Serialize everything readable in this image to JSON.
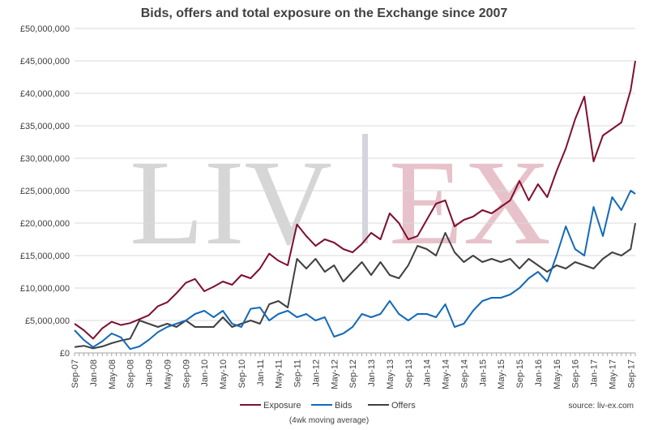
{
  "chart_data": {
    "type": "line",
    "title": "Bids, offers and total exposure on the Exchange since 2007",
    "subtitle": "(4wk moving average)",
    "source": "source: liv-ex.com",
    "watermark": {
      "left": "LIV",
      "right": "EX"
    },
    "xlabel": "",
    "ylabel": "",
    "ylim": [
      0,
      50000000
    ],
    "y_ticks": [
      0,
      5000000,
      10000000,
      15000000,
      20000000,
      25000000,
      30000000,
      35000000,
      40000000,
      45000000,
      50000000
    ],
    "y_tick_labels": [
      "£0",
      "£5,000,000",
      "£10,000,000",
      "£15,000,000",
      "£20,000,000",
      "£25,000,000",
      "£30,000,000",
      "£35,000,000",
      "£40,000,000",
      "£45,000,000",
      "£50,000,000"
    ],
    "grid": true,
    "legend_position": "bottom",
    "x_tick_labels": [
      "Sep-07",
      "Jan-08",
      "May-08",
      "Sep-08",
      "Jan-09",
      "May-09",
      "Sep-09",
      "Jan-10",
      "May-10",
      "Sep-10",
      "Jan-11",
      "May-11",
      "Sep-11",
      "Jan-12",
      "May-12",
      "Sep-12",
      "Jan-13",
      "May-13",
      "Sep-13",
      "Jan-14",
      "May-14",
      "Sep-14",
      "Jan-15",
      "May-15",
      "Sep-15",
      "Jan-16",
      "May-16",
      "Sep-16",
      "Jan-17",
      "May-17",
      "Sep-17"
    ],
    "x": [
      "Sep-07",
      "Nov-07",
      "Jan-08",
      "Mar-08",
      "May-08",
      "Jul-08",
      "Sep-08",
      "Nov-08",
      "Jan-09",
      "Mar-09",
      "May-09",
      "Jul-09",
      "Sep-09",
      "Nov-09",
      "Jan-10",
      "Mar-10",
      "May-10",
      "Jul-10",
      "Sep-10",
      "Nov-10",
      "Jan-11",
      "Mar-11",
      "May-11",
      "Jul-11",
      "Sep-11",
      "Nov-11",
      "Jan-12",
      "Mar-12",
      "May-12",
      "Jul-12",
      "Sep-12",
      "Nov-12",
      "Jan-13",
      "Mar-13",
      "May-13",
      "Jul-13",
      "Sep-13",
      "Nov-13",
      "Jan-14",
      "Mar-14",
      "May-14",
      "Jul-14",
      "Sep-14",
      "Nov-14",
      "Jan-15",
      "Mar-15",
      "May-15",
      "Jul-15",
      "Sep-15",
      "Nov-15",
      "Jan-16",
      "Mar-16",
      "May-16",
      "Jul-16",
      "Sep-16",
      "Nov-16",
      "Jan-17",
      "Mar-17",
      "May-17",
      "Jul-17",
      "Sep-17",
      "Oct-17"
    ],
    "series": [
      {
        "name": "Exposure",
        "color": "#7f0f2e",
        "values": [
          4500000,
          3500000,
          2200000,
          3800000,
          4800000,
          4300000,
          4600000,
          5200000,
          5800000,
          7200000,
          7800000,
          9200000,
          10800000,
          11400000,
          9500000,
          10200000,
          11000000,
          10500000,
          12000000,
          11500000,
          13000000,
          15300000,
          14200000,
          13500000,
          19800000,
          18000000,
          16500000,
          17500000,
          17000000,
          16000000,
          15500000,
          16800000,
          18500000,
          17500000,
          21500000,
          20000000,
          17500000,
          18000000,
          20500000,
          23000000,
          23500000,
          19500000,
          20500000,
          21000000,
          22000000,
          21500000,
          22500000,
          23500000,
          26500000,
          23500000,
          26000000,
          24000000,
          28000000,
          31500000,
          36000000,
          39500000,
          29500000,
          33500000,
          34500000,
          35500000,
          40500000,
          45000000
        ]
      },
      {
        "name": "Bids",
        "color": "#1469b8",
        "values": [
          3500000,
          2000000,
          900000,
          1800000,
          3000000,
          2400000,
          600000,
          1000000,
          2000000,
          3200000,
          4000000,
          4500000,
          5000000,
          6000000,
          6500000,
          5500000,
          6500000,
          4500000,
          4000000,
          6800000,
          7000000,
          5000000,
          6000000,
          6500000,
          5500000,
          6000000,
          5000000,
          5500000,
          2500000,
          3000000,
          4000000,
          6000000,
          5500000,
          6000000,
          8000000,
          6000000,
          5000000,
          6000000,
          6000000,
          5500000,
          7500000,
          4000000,
          4500000,
          6500000,
          8000000,
          8500000,
          8500000,
          9000000,
          10000000,
          11500000,
          12500000,
          11000000,
          15000000,
          19500000,
          16000000,
          15000000,
          22500000,
          18000000,
          24000000,
          22000000,
          25000000,
          24500000
        ]
      },
      {
        "name": "Offers",
        "color": "#404040",
        "values": [
          900000,
          1100000,
          700000,
          1000000,
          1500000,
          1900000,
          2200000,
          5000000,
          4500000,
          4000000,
          4500000,
          4000000,
          5000000,
          4000000,
          4000000,
          4000000,
          5500000,
          4000000,
          4500000,
          5000000,
          4500000,
          7500000,
          8000000,
          7000000,
          14500000,
          13000000,
          14500000,
          12500000,
          13500000,
          11000000,
          12500000,
          14000000,
          12000000,
          14000000,
          12000000,
          11500000,
          13500000,
          16500000,
          16000000,
          15000000,
          18500000,
          15500000,
          14000000,
          15000000,
          14000000,
          14500000,
          14000000,
          14500000,
          13000000,
          14500000,
          13500000,
          12500000,
          13500000,
          13000000,
          14000000,
          13500000,
          13000000,
          14500000,
          15500000,
          15000000,
          16000000,
          20000000
        ]
      }
    ]
  }
}
